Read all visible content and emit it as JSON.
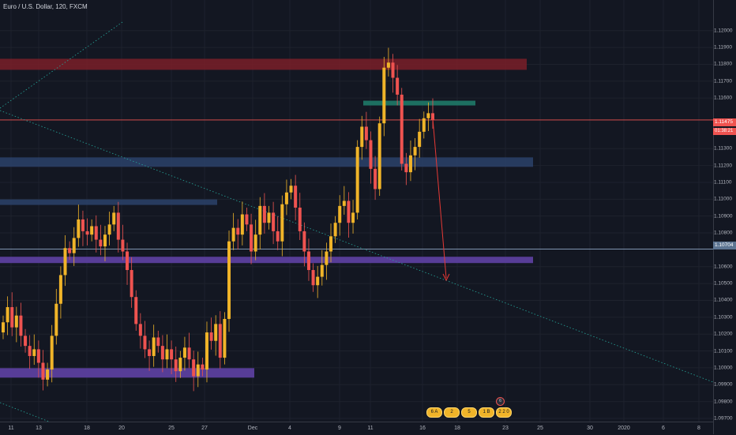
{
  "header": {
    "title": "Euro / U.S. Dollar, 120, FXCM"
  },
  "price_axis": {
    "labels": [
      "1.12200",
      "1.12000",
      "1.11900",
      "1.11800",
      "1.11700",
      "1.11600",
      "1.11300",
      "1.11200",
      "1.11100",
      "1.11000",
      "1.10900",
      "1.10800",
      "1.10600",
      "1.10500",
      "1.10400",
      "1.10300",
      "1.10200",
      "1.10100",
      "1.10000",
      "1.09900",
      "1.09800",
      "1.09700"
    ],
    "current_price": "1.11475",
    "countdown": "01:38:21",
    "line_price": "1.10704"
  },
  "time_axis": {
    "labels": [
      "11",
      "13",
      "18",
      "20",
      "25",
      "27",
      "Dec",
      "4",
      "9",
      "11",
      "16",
      "18",
      "23",
      "25",
      "30",
      "2020",
      "6",
      "8"
    ]
  },
  "events": {
    "items": [
      "6 A",
      "2",
      "5",
      "1 B",
      "2",
      "2 2 0"
    ],
    "bubble": "6"
  },
  "colors": {
    "background": "#131722",
    "up_candle": "#f0b429",
    "down_candle": "#ef5350",
    "zone_red": "#7a1e28",
    "zone_green": "#1f7a68",
    "zone_blue": "#2a3f66",
    "zone_purple": "#5b3f9e",
    "trendline": "#26a69a",
    "arrow": "#e53935"
  },
  "chart_data": {
    "type": "candlestick",
    "symbol": "Euro / U.S. Dollar",
    "timeframe": "120",
    "ylim": [
      1.097,
      1.122
    ],
    "series": [
      {
        "name": "",
        "values": [
          1.1027,
          1.1036,
          1.1024,
          1.1031,
          1.1019,
          1.1013,
          1.1007,
          1.1011,
          1.1003,
          1.0993,
          1.0999,
          1.1019,
          1.1038,
          1.1055,
          1.1071,
          1.1068,
          1.1077,
          1.1088,
          1.1081,
          1.1079,
          1.1084,
          1.1076,
          1.1072,
          1.1079,
          1.1085,
          1.1092,
          1.1076,
          1.1069,
          1.1058,
          1.1042,
          1.1026,
          1.1019,
          1.1011,
          1.1007,
          1.1018,
          1.1013,
          1.1005,
          1.1011,
          1.1005,
          1.0998,
          1.1006,
          1.1012,
          1.1005,
          1.0995,
          1.1002,
          1.0999,
          1.1021,
          1.1016,
          1.1026,
          1.1006,
          1.1029,
          1.1075,
          1.1083,
          1.1079,
          1.1091,
          1.1085,
          1.1069,
          1.1079,
          1.1096,
          1.1086,
          1.1092,
          1.1081,
          1.1075,
          1.1097,
          1.1104,
          1.1108,
          1.1095,
          1.1081,
          1.1069,
          1.1058,
          1.1049,
          1.1054,
          1.1061,
          1.1069,
          1.1078,
          1.1086,
          1.1096,
          1.1099,
          1.1086,
          1.1092,
          1.1131,
          1.1143,
          1.1135,
          1.1118,
          1.1106,
          1.1145,
          1.1178,
          1.1181,
          1.1172,
          1.1162,
          1.1121,
          1.1116,
          1.1126,
          1.1131,
          1.114,
          1.1148,
          1.1151,
          1.1147
        ]
      }
    ],
    "levels": [
      1.118,
      1.1157,
      1.1147,
      1.1122,
      1.1098,
      1.10704,
      1.1064,
      1.0997
    ],
    "grid": true
  }
}
